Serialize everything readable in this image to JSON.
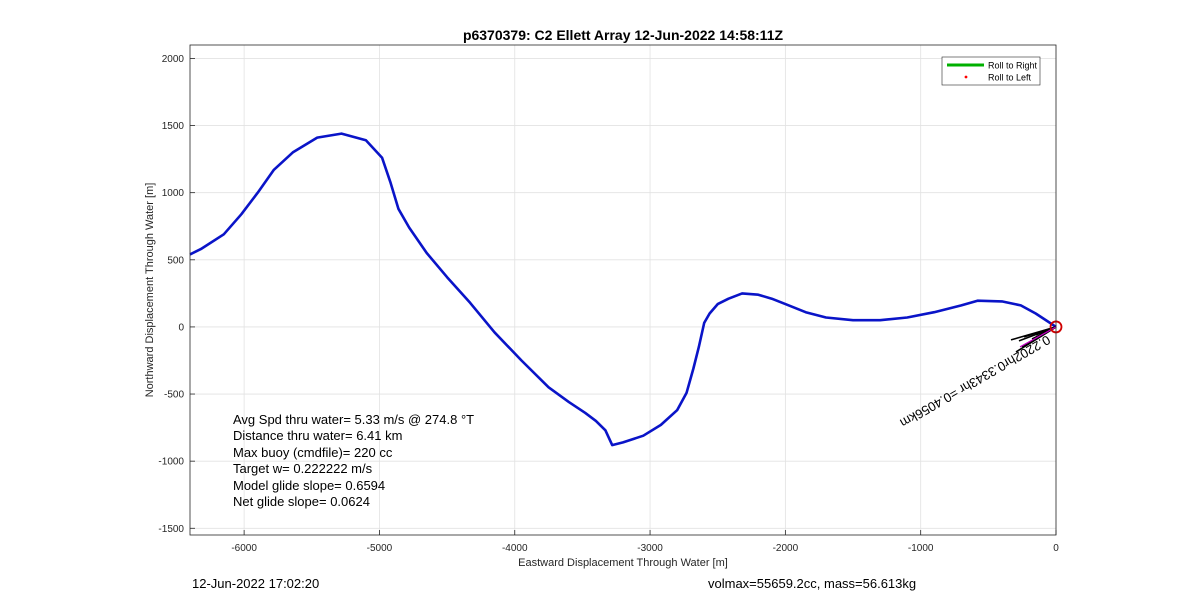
{
  "chart_data": {
    "type": "line",
    "title": "p6370379: C2 Ellett Array 12-Jun-2022 14:58:11Z",
    "xlabel": "Eastward Displacement Through Water [m]",
    "ylabel": "Northward Displacement Through Water [m]",
    "xlim": [
      -6400,
      0
    ],
    "ylim": [
      -1550,
      2100
    ],
    "xticks": [
      -6000,
      -5000,
      -4000,
      -3000,
      -2000,
      -1000,
      0
    ],
    "yticks": [
      -1500,
      -1000,
      -500,
      0,
      500,
      1000,
      1500,
      2000
    ],
    "grid": true,
    "legend": {
      "position": "top-right",
      "entries": [
        "Roll to Right",
        "Roll to Left"
      ]
    },
    "series": [
      {
        "name": "Roll to Right",
        "color": "#00b000",
        "x": [],
        "y": []
      },
      {
        "name": "Roll to Left",
        "color": "#ff0000",
        "x": [],
        "y": []
      },
      {
        "name": "",
        "color": "#0a14c8",
        "x": [
          -6400,
          -6320,
          -6150,
          -6020,
          -5900,
          -5780,
          -5640,
          -5460,
          -5280,
          -5100,
          -4980,
          -4920,
          -4860,
          -4780,
          -4650,
          -4500,
          -4330,
          -4150,
          -3950,
          -3750,
          -3600,
          -3480,
          -3400,
          -3330,
          -3280,
          -3200,
          -3050,
          -2920,
          -2800,
          -2730,
          -2680,
          -2640,
          -2600,
          -2560,
          -2500,
          -2420,
          -2320,
          -2200,
          -2100,
          -2000,
          -1850,
          -1700,
          -1500,
          -1300,
          -1100,
          -900,
          -700,
          -580,
          -400,
          -260,
          -150,
          -60,
          0
        ],
        "y": [
          540,
          580,
          690,
          840,
          1000,
          1170,
          1300,
          1410,
          1440,
          1390,
          1260,
          1080,
          880,
          740,
          550,
          370,
          180,
          -40,
          -250,
          -450,
          -560,
          -640,
          -700,
          -770,
          -880,
          -860,
          -810,
          -730,
          -620,
          -490,
          -310,
          -150,
          30,
          100,
          170,
          210,
          250,
          240,
          210,
          170,
          110,
          70,
          50,
          50,
          70,
          110,
          160,
          195,
          190,
          160,
          100,
          40,
          0
        ]
      }
    ],
    "marker": {
      "x": 0,
      "y": 0,
      "color": "#d00000"
    },
    "vector_label": "0.2202hr0.3343hr =0.4056km",
    "info": [
      "Avg Spd thru water=  5.33 m/s @ 274.8 °T",
      "Distance thru water=  6.41 km",
      "Max buoy (cmdfile)= 220 cc",
      "Target w= 0.222222 m/s",
      "Model glide slope= 0.6594",
      "Net glide slope= 0.0624"
    ]
  },
  "footer": {
    "left": "12-Jun-2022 17:02:20",
    "right": "volmax=55659.2cc, mass=56.613kg"
  }
}
